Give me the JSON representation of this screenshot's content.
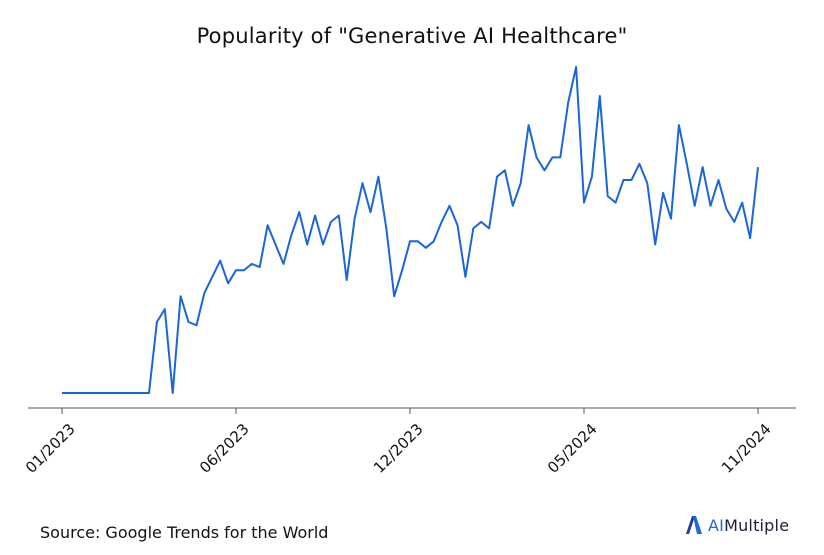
{
  "title": "Popularity of \"Generative AI Healthcare\"",
  "source": "Source: Google Trends for the World",
  "brand": {
    "prefix": "AI",
    "name": "Multiple",
    "logo_icon": "aimultiple-logo-icon"
  },
  "colors": {
    "line": "#1a66d9",
    "axis": "#555555",
    "brand_accent": "#1f6bd6"
  },
  "chart_data": {
    "type": "line",
    "title": "Popularity of \"Generative AI Healthcare\"",
    "xlabel": "",
    "ylabel": "",
    "grid": false,
    "y_axis_visible": false,
    "x_ticks": [
      {
        "label": "01/2023",
        "week": 0
      },
      {
        "label": "06/2023",
        "week": 22
      },
      {
        "label": "12/2023",
        "week": 44
      },
      {
        "label": "05/2024",
        "week": 66
      },
      {
        "label": "11/2024",
        "week": 88
      }
    ],
    "x": [
      0,
      1,
      2,
      3,
      4,
      5,
      6,
      7,
      8,
      9,
      10,
      11,
      12,
      13,
      14,
      15,
      16,
      17,
      18,
      19,
      20,
      21,
      22,
      23,
      24,
      25,
      26,
      27,
      28,
      29,
      30,
      31,
      32,
      33,
      34,
      35,
      36,
      37,
      38,
      39,
      40,
      41,
      42,
      43,
      44,
      45,
      46,
      47,
      48,
      49,
      50,
      51,
      52,
      53,
      54,
      55,
      56,
      57,
      58,
      59,
      60,
      61,
      62,
      63,
      64,
      65,
      66,
      67,
      68,
      69,
      70,
      71,
      72,
      73,
      74,
      75,
      76,
      77,
      78,
      79,
      80,
      81,
      82,
      83,
      84,
      85,
      86,
      87,
      88
    ],
    "values": [
      0,
      0,
      0,
      0,
      0,
      0,
      0,
      0,
      0,
      0,
      0,
      0,
      22,
      26,
      0,
      30,
      22,
      21,
      31,
      36,
      41,
      34,
      38,
      38,
      40,
      39,
      52,
      46,
      40,
      49,
      56,
      46,
      55,
      46,
      53,
      55,
      35,
      54,
      65,
      56,
      67,
      51,
      30,
      38,
      47,
      47,
      45,
      47,
      53,
      58,
      52,
      36,
      51,
      53,
      51,
      67,
      69,
      58,
      65,
      83,
      73,
      69,
      73,
      73,
      90,
      101,
      59,
      67,
      92,
      61,
      59,
      66,
      66,
      71,
      65,
      46,
      62,
      54,
      83,
      71,
      58,
      70,
      58,
      66,
      57,
      53,
      59,
      48,
      70
    ],
    "ylim": [
      0,
      101
    ]
  }
}
